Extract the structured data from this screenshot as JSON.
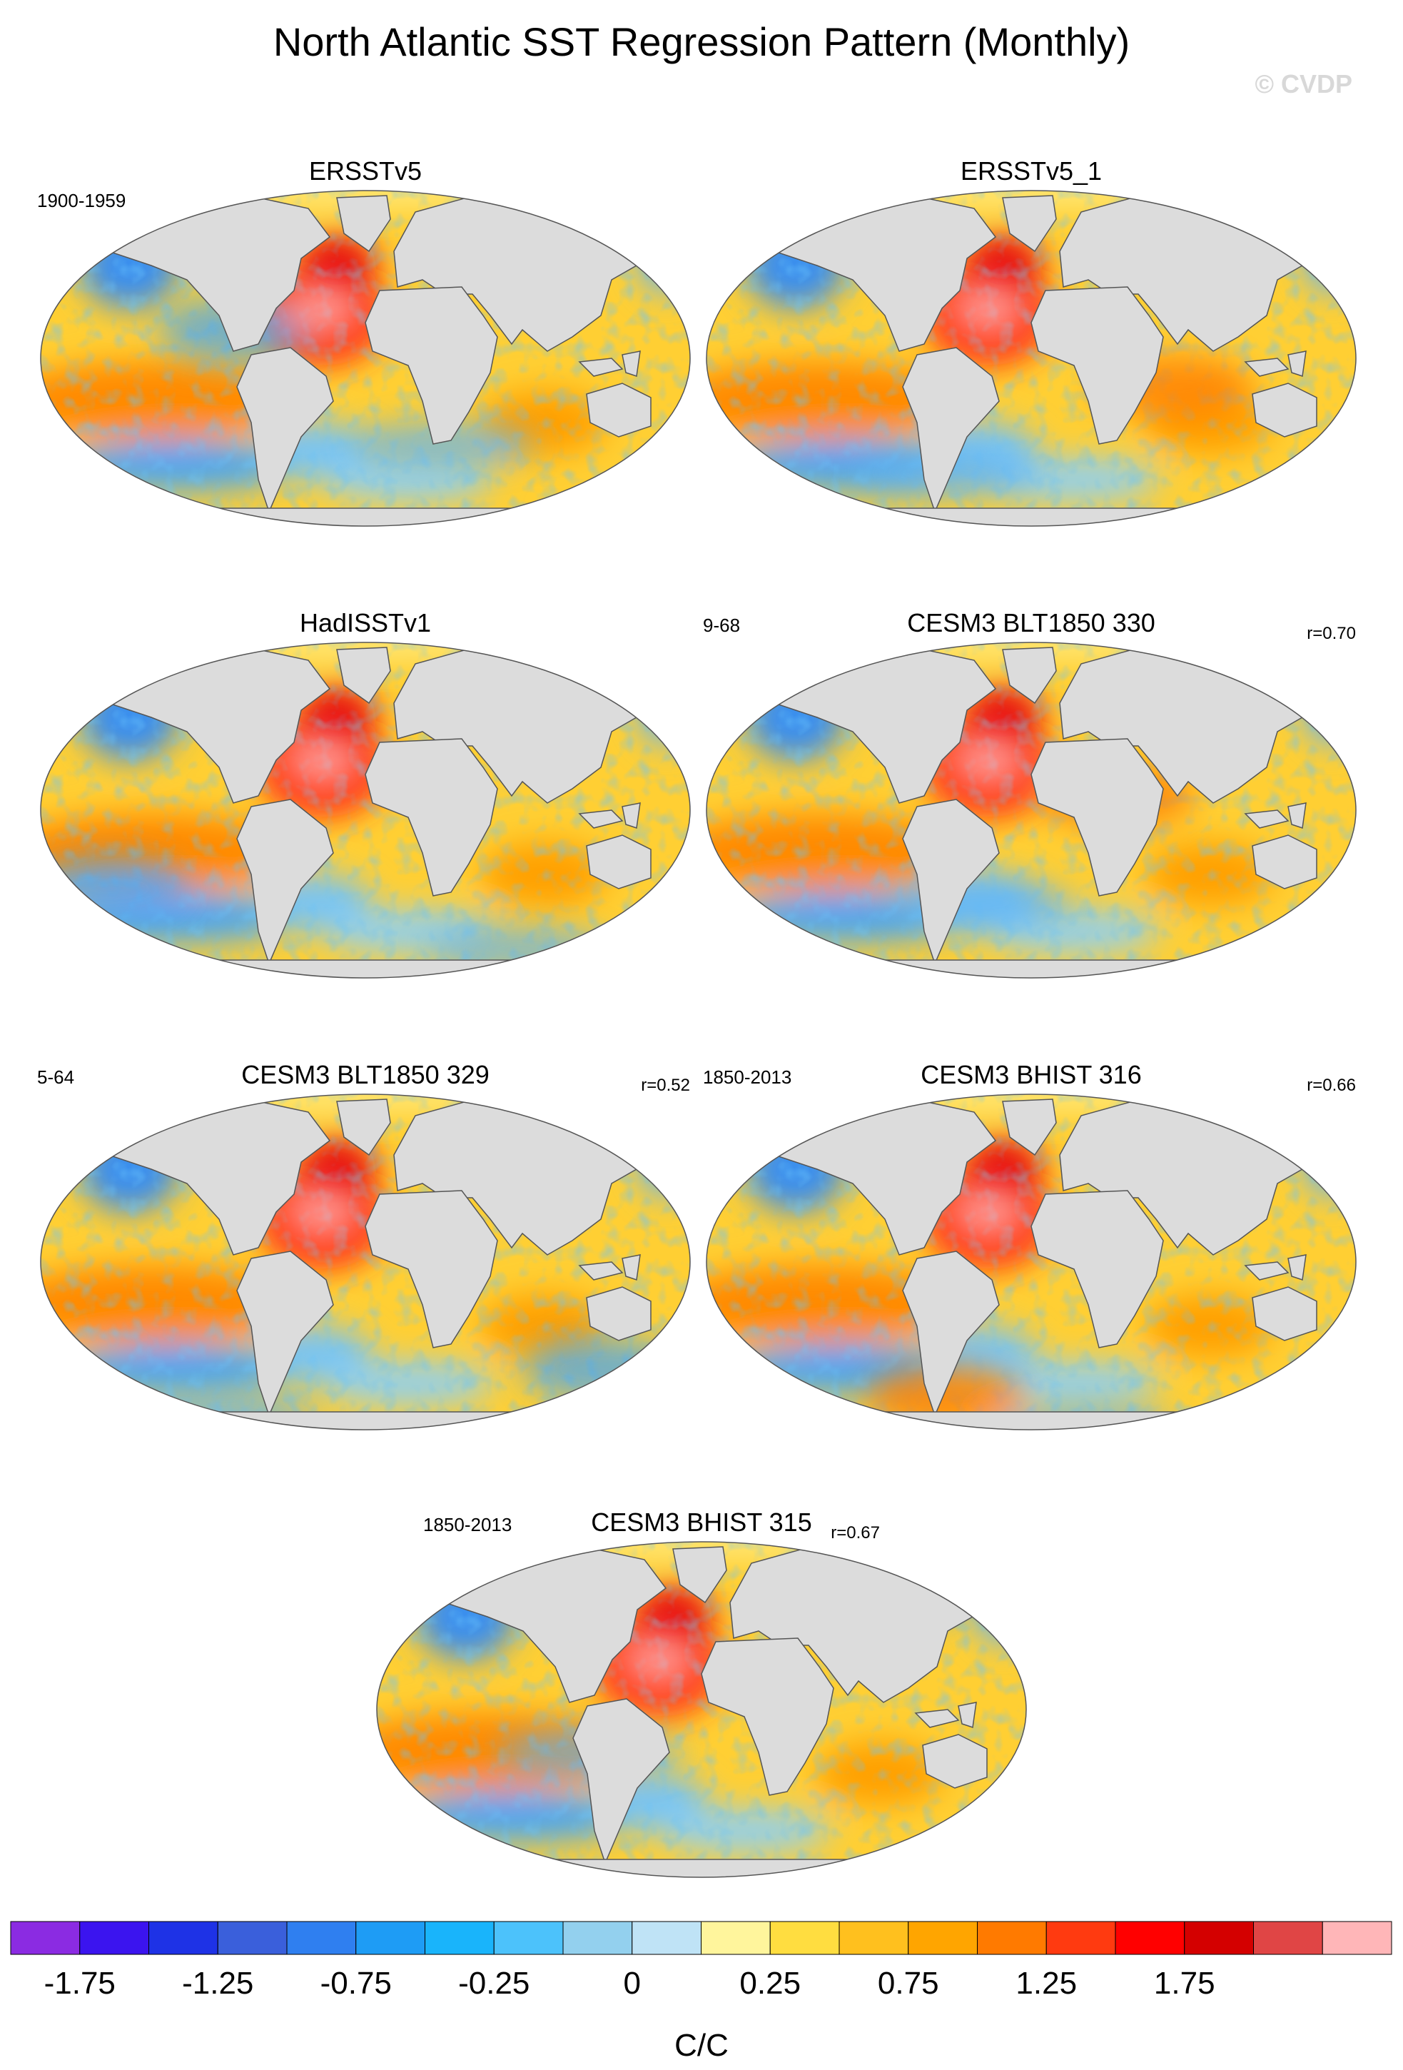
{
  "title": "North Atlantic SST Regression Pattern (Monthly)",
  "watermark": "© CVDP",
  "chart_data": {
    "type": "heatmap",
    "title": "North Atlantic SST Regression Pattern (Monthly)",
    "projection": "global map (Winkel-Tripel style)",
    "panels": [
      {
        "name": "ERSSTv5",
        "period": "1900-1959",
        "r": ""
      },
      {
        "name": "ERSSTv5_1",
        "period": "",
        "r": ""
      },
      {
        "name": "HadISSTv1",
        "period": "",
        "r": ""
      },
      {
        "name": "CESM3 BLT1850 330",
        "period": "9-68",
        "r": "r=0.70"
      },
      {
        "name": "CESM3 BLT1850 329",
        "period": "5-64",
        "r": "r=0.52"
      },
      {
        "name": "CESM3 BHIST 316",
        "period": "1850-2013",
        "r": "r=0.66"
      },
      {
        "name": "CESM3 BHIST 315",
        "period": "1850-2013",
        "r": "r=0.67"
      }
    ],
    "colorbar": {
      "label": "C/C",
      "tick_labels": [
        "-1.75",
        "-1.25",
        "-0.75",
        "-0.25",
        "0",
        "0.25",
        "0.75",
        "1.25",
        "1.75"
      ],
      "colors": [
        "#8b2be2",
        "#3b14ef",
        "#1e32e6",
        "#3a5fdb",
        "#2f7ff0",
        "#1e9cf5",
        "#19b4fb",
        "#4cc2fb",
        "#93d0ee",
        "#bfe3f6",
        "#fff59c",
        "#ffdd40",
        "#ffc01e",
        "#ffa500",
        "#ff7a00",
        "#ff3a10",
        "#ff0000",
        "#d40000",
        "#e04545",
        "#ffb6b8"
      ]
    }
  }
}
